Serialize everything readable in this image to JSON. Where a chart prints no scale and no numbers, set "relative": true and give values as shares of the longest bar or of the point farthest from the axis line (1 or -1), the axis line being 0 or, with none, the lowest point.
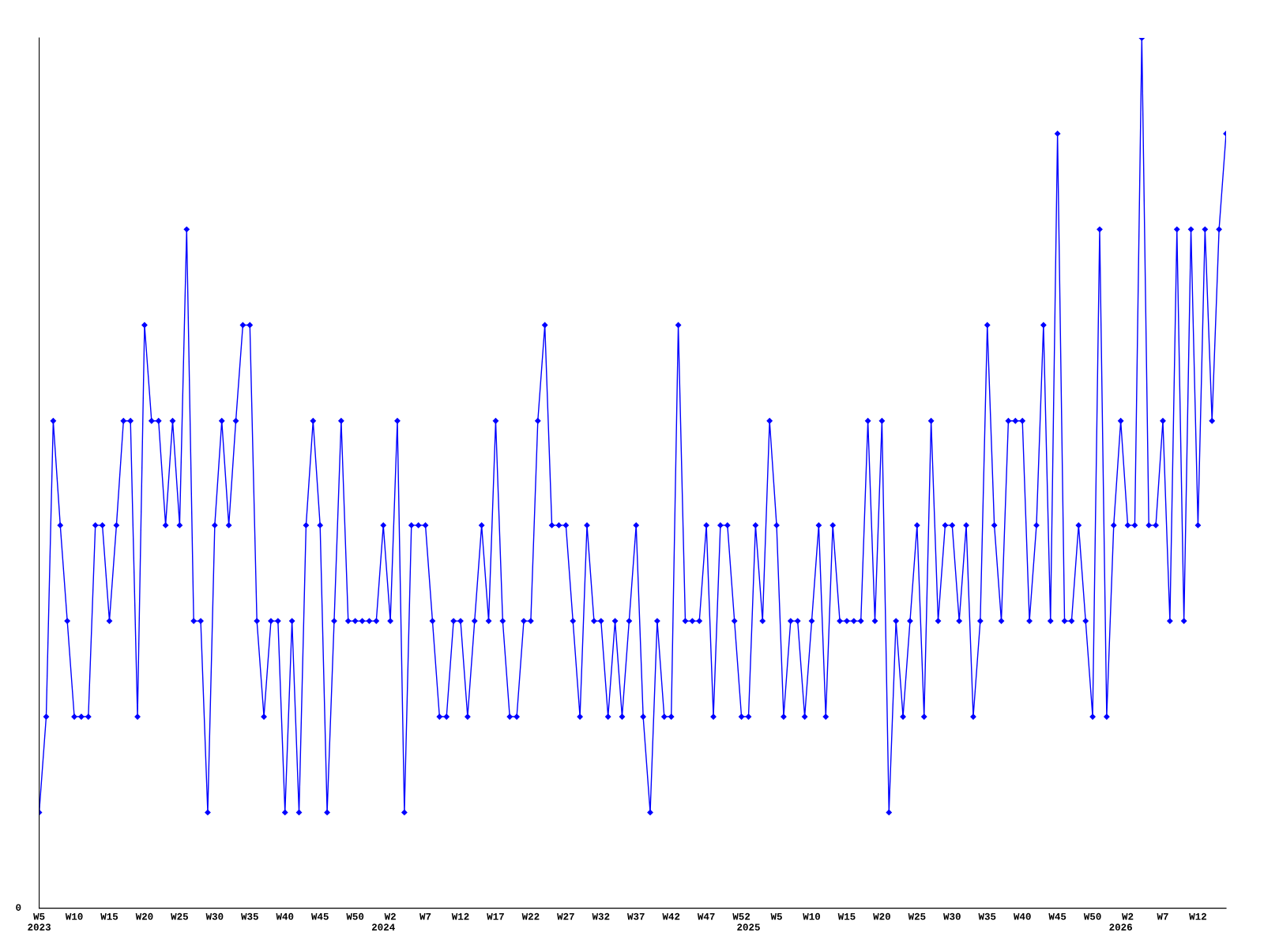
{
  "chart_data": {
    "type": "line",
    "relative": true,
    "marker": "diamond",
    "line_style": "solid",
    "grid": false,
    "legend": false,
    "categories": [
      "W5\n2023",
      null,
      null,
      null,
      null,
      "W10",
      null,
      null,
      null,
      null,
      "W15",
      null,
      null,
      null,
      null,
      "W20",
      null,
      null,
      null,
      null,
      "W25",
      null,
      null,
      null,
      null,
      "W30",
      null,
      null,
      null,
      null,
      "W35",
      null,
      null,
      null,
      null,
      "W40",
      null,
      null,
      null,
      null,
      "W45",
      null,
      null,
      null,
      null,
      "W50",
      null,
      null,
      null,
      "\n2024",
      "W2",
      null,
      null,
      null,
      null,
      "W7",
      null,
      null,
      null,
      null,
      "W12",
      null,
      null,
      null,
      null,
      "W17",
      null,
      null,
      null,
      null,
      "W22",
      null,
      null,
      null,
      null,
      "W27",
      null,
      null,
      null,
      null,
      "W32",
      null,
      null,
      null,
      null,
      "W37",
      null,
      null,
      null,
      null,
      "W42",
      null,
      null,
      null,
      null,
      "W47",
      null,
      null,
      null,
      null,
      "W52",
      "\n2025",
      null,
      null,
      null,
      "W5",
      null,
      null,
      null,
      null,
      "W10",
      null,
      null,
      null,
      null,
      "W15",
      null,
      null,
      null,
      null,
      "W20",
      null,
      null,
      null,
      null,
      "W25",
      null,
      null,
      null,
      null,
      "W30",
      null,
      null,
      null,
      null,
      "W35",
      null,
      null,
      null,
      null,
      "W40",
      null,
      null,
      null,
      null,
      "W45",
      null,
      null,
      null,
      null,
      "W50",
      null,
      null,
      null,
      "\n2026",
      "W2",
      null,
      null,
      null,
      null,
      "W7",
      null,
      null,
      null,
      null,
      "W12",
      null,
      null,
      null,
      null
    ],
    "series": [
      {
        "color": "#0000ff",
        "values": [
          0.11,
          0.22,
          0.56,
          0.44,
          0.33,
          0.22,
          0.22,
          0.22,
          0.44,
          0.44,
          0.33,
          0.44,
          0.56,
          0.56,
          0.22,
          0.67,
          0.56,
          0.56,
          0.44,
          0.56,
          0.44,
          0.78,
          0.33,
          0.33,
          0.11,
          0.44,
          0.56,
          0.44,
          0.56,
          0.67,
          0.67,
          0.33,
          0.22,
          0.33,
          0.33,
          0.11,
          0.33,
          0.11,
          0.44,
          0.56,
          0.44,
          0.11,
          0.33,
          0.56,
          0.33,
          0.33,
          0.33,
          0.33,
          0.33,
          0.44,
          0.33,
          0.56,
          0.11,
          0.44,
          0.44,
          0.44,
          0.33,
          0.22,
          0.22,
          0.33,
          0.33,
          0.22,
          0.33,
          0.44,
          0.33,
          0.56,
          0.33,
          0.22,
          0.22,
          0.33,
          0.33,
          0.56,
          0.67,
          0.44,
          0.44,
          0.44,
          0.33,
          0.22,
          0.44,
          0.33,
          0.33,
          0.22,
          0.33,
          0.22,
          0.33,
          0.44,
          0.22,
          0.11,
          0.33,
          0.22,
          0.22,
          0.67,
          0.33,
          0.33,
          0.33,
          0.44,
          0.22,
          0.44,
          0.44,
          0.33,
          0.22,
          0.22,
          0.44,
          0.33,
          0.56,
          0.44,
          0.22,
          0.33,
          0.33,
          0.22,
          0.33,
          0.44,
          0.22,
          0.44,
          0.33,
          0.33,
          0.33,
          0.33,
          0.56,
          0.33,
          0.56,
          0.11,
          0.33,
          0.22,
          0.33,
          0.44,
          0.22,
          0.56,
          0.33,
          0.44,
          0.44,
          0.33,
          0.44,
          0.22,
          0.33,
          0.67,
          0.44,
          0.33,
          0.56,
          0.56,
          0.56,
          0.33,
          0.44,
          0.67,
          0.33,
          0.89,
          0.33,
          0.33,
          0.44,
          0.33,
          0.22,
          0.78,
          0.22,
          0.44,
          0.56,
          0.44,
          0.44,
          1,
          0.44,
          0.44,
          0.56,
          0.33,
          0.78,
          0.33,
          0.78,
          0.44,
          0.78,
          0.56,
          0.78,
          0.89
        ]
      }
    ],
    "annotations": [
      "0"
    ]
  }
}
